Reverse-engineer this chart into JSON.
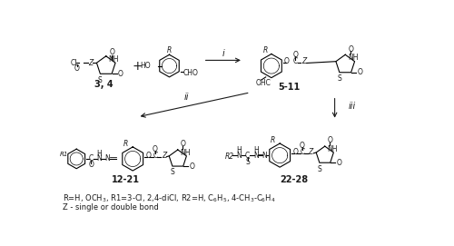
{
  "background_color": "#ffffff",
  "fig_width": 5.0,
  "fig_height": 2.71,
  "dpi": 100,
  "label_34": "3, 4",
  "label_511": "5-11",
  "label_1221": "12-21",
  "label_2228": "22-28",
  "footnote_line1": "R=H, OCH$_3$, R1=3-Cl, 2,4-diCl, R2=H, C$_6$H$_5$, 4-CH$_3$-C$_6$H$_4$",
  "footnote_line2": "Z - single or double bond",
  "reagent_i": "i",
  "reagent_ii": "ii",
  "reagent_iii": "iii"
}
